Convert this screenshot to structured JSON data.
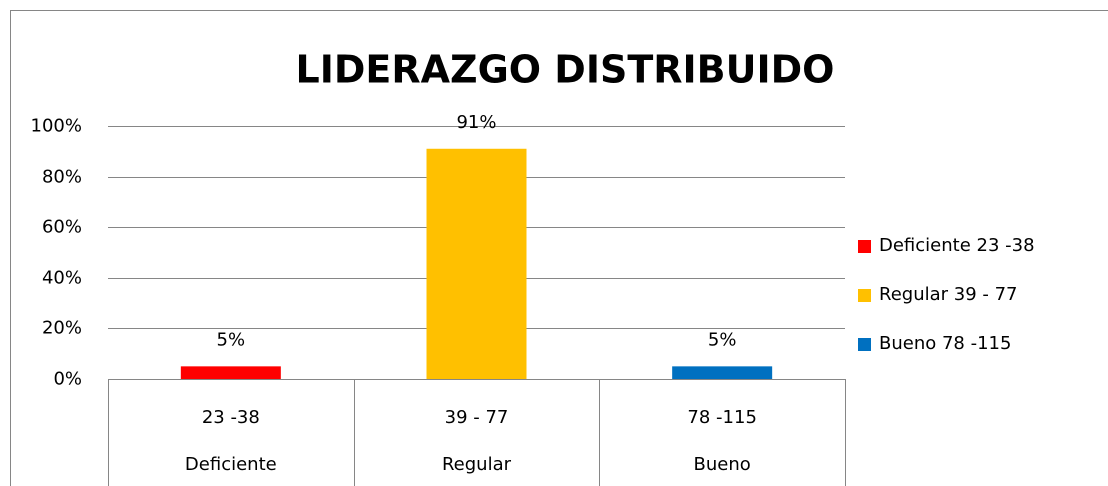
{
  "chart_data": {
    "type": "bar",
    "title": "LIDERAZGO DISTRIBUIDO",
    "categories": [
      [
        "23 -38",
        "Deficiente"
      ],
      [
        "39 - 77",
        "Regular"
      ],
      [
        "78 -115",
        "Bueno"
      ]
    ],
    "series": [
      {
        "name": "Deficiente 23 -38",
        "color": "#ff0000",
        "values": [
          5,
          null,
          null
        ],
        "value_labels": [
          "5%",
          null,
          null
        ]
      },
      {
        "name": "Regular 39 - 77",
        "color": "#ffc000",
        "values": [
          null,
          91,
          null
        ],
        "value_labels": [
          null,
          "91%",
          null
        ]
      },
      {
        "name": "Bueno 78 -115",
        "color": "#0070c0",
        "values": [
          null,
          null,
          5
        ],
        "value_labels": [
          null,
          null,
          "5%"
        ]
      }
    ],
    "ylim": [
      0,
      100
    ],
    "yticks": [
      {
        "value": 0,
        "label": "0%"
      },
      {
        "value": 20,
        "label": "20%"
      },
      {
        "value": 40,
        "label": "40%"
      },
      {
        "value": 60,
        "label": "60%"
      },
      {
        "value": 80,
        "label": "80%"
      },
      {
        "value": 100,
        "label": "100%"
      }
    ],
    "grid": true,
    "legend": "right"
  }
}
